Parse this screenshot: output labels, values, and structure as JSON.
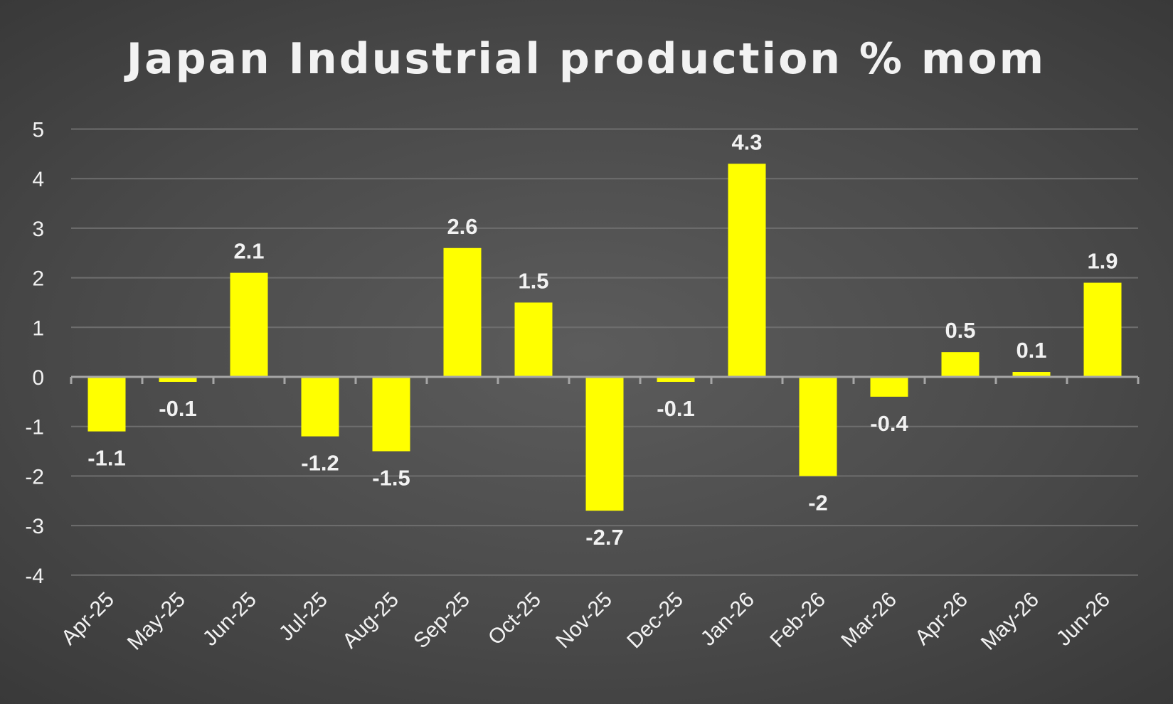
{
  "chart_data": {
    "type": "bar",
    "title": "Japan Industrial production % mom",
    "categories": [
      "Apr-25",
      "May-25",
      "Jun-25",
      "Jul-25",
      "Aug-25",
      "Sep-25",
      "Oct-25",
      "Nov-25",
      "Dec-25",
      "Jan-26",
      "Feb-26",
      "Mar-26",
      "Apr-26",
      "May-26",
      "Jun-26"
    ],
    "values": [
      -1.1,
      -0.1,
      2.1,
      -1.2,
      -1.5,
      2.6,
      1.5,
      -2.7,
      -0.1,
      4.3,
      -2,
      -0.4,
      0.5,
      0.1,
      1.9
    ],
    "data_labels": [
      "-1.1",
      "-0.1",
      "2.1",
      "-1.2",
      "-1.5",
      "2.6",
      "1.5",
      "-2.7",
      "-0.1",
      "4.3",
      "-2",
      "-0.4",
      "0.5",
      "0.1",
      "1.9"
    ],
    "y_ticks": [
      "5",
      "4",
      "3",
      "2",
      "1",
      "0",
      "-1",
      "-2",
      "-3",
      "-4"
    ],
    "ylim": [
      -4,
      5
    ],
    "xlabel": "",
    "ylabel": "",
    "grid": true,
    "legend": "none",
    "colors": {
      "bar": "#FFFF00",
      "text": "#F2F2F2",
      "grid": "#6E6E6E",
      "axis": "#A6A6A6"
    }
  }
}
